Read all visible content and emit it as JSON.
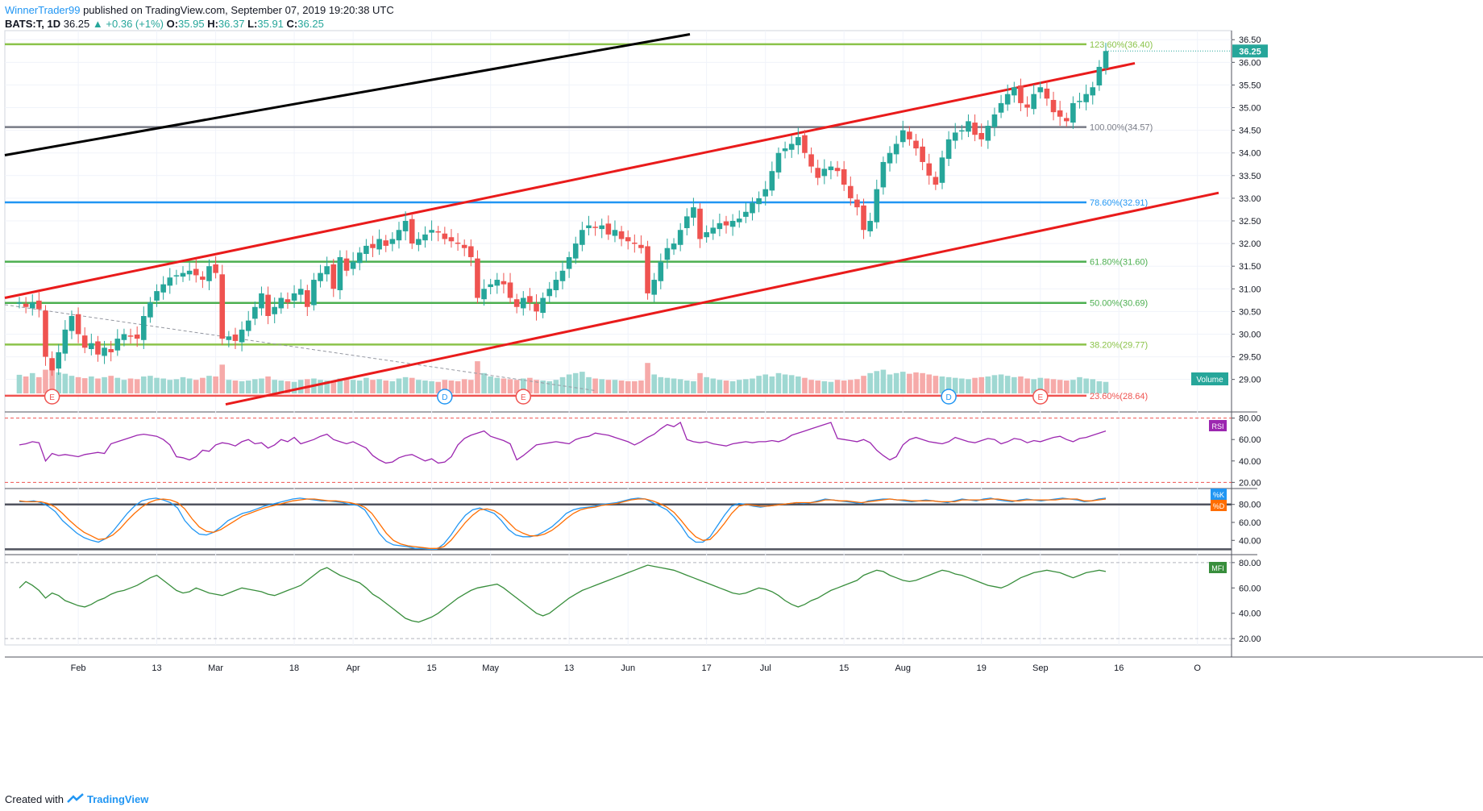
{
  "header": {
    "author": "WinnerTrader99",
    "published": "published on TradingView.com, September 07, 2019 19:20:38 UTC",
    "symbol": "BATS:T, 1D",
    "last": "36.25",
    "change": "+0.36 (+1%)",
    "o_label": "O:",
    "o": "35.95",
    "h_label": "H:",
    "h": "36.37",
    "l_label": "L:",
    "l": "35.91",
    "c_label": "C:",
    "c": "36.25"
  },
  "footer": {
    "created_with": "Created with",
    "brand": "TradingView"
  },
  "colors": {
    "up": "#26a69a",
    "down": "#ef5350",
    "channel": "#e91b1b",
    "trend": "#000000",
    "rsi": "#9c27b0",
    "k": "#2196f3",
    "d": "#ff6d00",
    "mfi": "#388e3c"
  },
  "chart_data": [
    {
      "type": "candlestick",
      "title": "",
      "ylim": [
        28.3,
        36.7
      ],
      "price_ticks": [
        "36.50",
        "36.00",
        "35.50",
        "35.00",
        "34.50",
        "34.00",
        "33.50",
        "33.00",
        "32.50",
        "32.00",
        "31.50",
        "31.00",
        "30.50",
        "30.00",
        "29.50",
        "29.00"
      ],
      "last_price_label": "36.25",
      "volume_label": "Volume",
      "x_ticks": [
        "Feb",
        "13",
        "Mar",
        "18",
        "Apr",
        "15",
        "May",
        "13",
        "Jun",
        "17",
        "Jul",
        "15",
        "Aug",
        "19",
        "Sep",
        "16",
        "O"
      ],
      "fib_levels": [
        {
          "label": "123.60%(36.40)",
          "value": 36.4,
          "color": "#8bc34a"
        },
        {
          "label": "100.00%(34.57)",
          "value": 34.57,
          "color": "#787b86"
        },
        {
          "label": "78.60%(32.91)",
          "value": 32.91,
          "color": "#2196f3"
        },
        {
          "label": "61.80%(31.60)",
          "value": 31.6,
          "color": "#4caf50"
        },
        {
          "label": "50.00%(30.69)",
          "value": 30.69,
          "color": "#4caf50"
        },
        {
          "label": "38.20%(29.77)",
          "value": 29.77,
          "color": "#8bc34a"
        },
        {
          "label": "23.60%(28.64)",
          "value": 28.64,
          "color": "#ef5350"
        }
      ],
      "events": [
        {
          "label": "E",
          "kind": "earnings",
          "index": 5
        },
        {
          "label": "D",
          "kind": "dividend",
          "index": 65
        },
        {
          "label": "E",
          "kind": "earnings",
          "index": 77
        },
        {
          "label": "D",
          "kind": "dividend",
          "index": 142
        },
        {
          "label": "E",
          "kind": "earnings",
          "index": 156
        }
      ],
      "closes": [
        30.7,
        30.6,
        30.7,
        30.55,
        29.5,
        29.2,
        29.6,
        30.1,
        30.4,
        30.0,
        29.7,
        29.8,
        29.55,
        29.7,
        29.6,
        29.9,
        30.0,
        29.95,
        29.9,
        30.4,
        30.7,
        30.95,
        31.1,
        31.25,
        31.3,
        31.35,
        31.4,
        31.3,
        31.2,
        31.5,
        31.35,
        29.9,
        29.95,
        29.85,
        30.1,
        30.3,
        30.6,
        30.9,
        30.4,
        30.6,
        30.8,
        30.7,
        30.9,
        31.0,
        30.6,
        31.2,
        31.35,
        31.5,
        31.0,
        31.7,
        31.4,
        31.6,
        31.8,
        31.95,
        31.9,
        32.1,
        31.95,
        32.1,
        32.3,
        32.5,
        32.0,
        32.1,
        32.2,
        32.3,
        32.25,
        32.1,
        32.05,
        32.0,
        31.9,
        31.7,
        30.8,
        31.0,
        31.1,
        31.2,
        31.1,
        30.8,
        30.6,
        30.8,
        30.7,
        30.5,
        30.8,
        31.0,
        31.2,
        31.4,
        31.7,
        32.0,
        32.3,
        32.4,
        32.35,
        32.4,
        32.2,
        32.3,
        32.1,
        32.05,
        32.0,
        31.9,
        30.9,
        31.2,
        31.6,
        31.9,
        32.0,
        32.3,
        32.6,
        32.8,
        32.1,
        32.25,
        32.35,
        32.45,
        32.4,
        32.5,
        32.55,
        32.7,
        32.9,
        33.0,
        33.2,
        33.6,
        34.0,
        34.1,
        34.2,
        34.35,
        34.0,
        33.7,
        33.45,
        33.65,
        33.7,
        33.6,
        33.3,
        33.0,
        32.8,
        32.3,
        32.5,
        33.2,
        33.8,
        34.0,
        34.2,
        34.5,
        34.3,
        34.1,
        33.8,
        33.5,
        33.3,
        33.9,
        34.3,
        34.45,
        34.5,
        34.7,
        34.4,
        34.3,
        34.6,
        34.85,
        35.1,
        35.3,
        35.45,
        35.1,
        35.0,
        35.3,
        35.45,
        35.2,
        34.9,
        34.8,
        34.7,
        35.1,
        35.15,
        35.3,
        35.45,
        35.9,
        36.25
      ],
      "rsi": {
        "label": "RSI",
        "ylim": [
          15,
          85
        ],
        "ticks": [
          "80.00",
          "60.00",
          "40.00",
          "20.00"
        ],
        "bands": [
          80,
          20
        ],
        "values": [
          55,
          56,
          58,
          57,
          40,
          47,
          45,
          46,
          45,
          44,
          46,
          47,
          48,
          47,
          56,
          58,
          60,
          62,
          64,
          65,
          64,
          63,
          60,
          55,
          44,
          43,
          41,
          44,
          50,
          49,
          55,
          57,
          56,
          54,
          58,
          60,
          56,
          57,
          52,
          55,
          60,
          58,
          62,
          56,
          58,
          60,
          63,
          65,
          60,
          58,
          56,
          58,
          55,
          52,
          45,
          41,
          38,
          39,
          43,
          45,
          46,
          43,
          40,
          42,
          38,
          39,
          44,
          55,
          61,
          64,
          66,
          68,
          63,
          61,
          59,
          56,
          41,
          45,
          50,
          55,
          56,
          57,
          58,
          57,
          56,
          60,
          62,
          63,
          66,
          65,
          64,
          62,
          60,
          58,
          55,
          58,
          62,
          65,
          70,
          74,
          72,
          76,
          60,
          58,
          57,
          58,
          56,
          55,
          54,
          56,
          57,
          58,
          57,
          58,
          58,
          59,
          58,
          60,
          64,
          66,
          68,
          70,
          72,
          74,
          76,
          61,
          60,
          59,
          58,
          60,
          57,
          50,
          45,
          41,
          44,
          55,
          60,
          62,
          60,
          58,
          57,
          56,
          58,
          62,
          60,
          58,
          57,
          59,
          61,
          60,
          56,
          58,
          61,
          60,
          57,
          59,
          58,
          60,
          62,
          63,
          60,
          58,
          61,
          62,
          64,
          66,
          68
        ]
      },
      "stoch": {
        "label_k": "%K",
        "label_d": "%D",
        "ylim": [
          25,
          95
        ],
        "ticks": [
          "80.00",
          "60.00",
          "40.00"
        ],
        "bands": [
          80,
          30
        ],
        "k": [
          83,
          83,
          84,
          82,
          78,
          72,
          62,
          55,
          48,
          43,
          40,
          38,
          42,
          50,
          60,
          70,
          78,
          84,
          86,
          87,
          85,
          82,
          76,
          62,
          53,
          47,
          46,
          49,
          55,
          62,
          66,
          70,
          72,
          75,
          78,
          80,
          82,
          84,
          86,
          87,
          86,
          85,
          84,
          84,
          83,
          82,
          80,
          79,
          74,
          62,
          48,
          39,
          35,
          34,
          33,
          31,
          31,
          30,
          30,
          36,
          46,
          58,
          68,
          74,
          76,
          73,
          70,
          62,
          52,
          46,
          44,
          44,
          46,
          50,
          55,
          62,
          70,
          74,
          76,
          77,
          78,
          80,
          81,
          82,
          84,
          86,
          87,
          86,
          82,
          78,
          74,
          66,
          56,
          44,
          38,
          38,
          44,
          56,
          68,
          78,
          81,
          80,
          78,
          77,
          78,
          79,
          80,
          81,
          82,
          81,
          82,
          84,
          86,
          85,
          84,
          83,
          82,
          81,
          84,
          85,
          86,
          86,
          85,
          84,
          83,
          84,
          85,
          84,
          83,
          82,
          84,
          86,
          85,
          84,
          86,
          87,
          85,
          84,
          83,
          85,
          86,
          85,
          84,
          85,
          86,
          87,
          86,
          85,
          83,
          84,
          86,
          87
        ],
        "d": [
          84,
          83,
          83,
          83,
          81,
          77,
          70,
          62,
          55,
          49,
          45,
          41,
          42,
          46,
          53,
          62,
          70,
          77,
          82,
          85,
          86,
          85,
          82,
          75,
          64,
          55,
          50,
          49,
          52,
          57,
          62,
          67,
          70,
          73,
          76,
          78,
          80,
          82,
          84,
          85,
          86,
          86,
          85,
          84,
          84,
          83,
          82,
          80,
          77,
          70,
          59,
          48,
          40,
          36,
          34,
          33,
          32,
          31,
          31,
          33,
          40,
          50,
          60,
          68,
          74,
          75,
          73,
          68,
          60,
          52,
          48,
          45,
          45,
          47,
          51,
          57,
          64,
          70,
          74,
          76,
          77,
          79,
          80,
          81,
          83,
          85,
          86,
          86,
          84,
          81,
          77,
          71,
          62,
          52,
          44,
          40,
          41,
          49,
          59,
          70,
          78,
          80,
          79,
          78,
          78,
          79,
          80,
          81,
          82,
          82,
          82,
          83,
          85,
          85,
          84,
          84,
          83,
          82,
          83,
          84,
          85,
          86,
          85,
          85,
          84,
          84,
          84,
          84,
          83,
          83,
          83,
          85,
          85,
          85,
          85,
          86,
          86,
          85,
          84,
          84,
          85,
          85,
          85,
          85,
          85,
          86,
          86,
          86,
          84,
          84,
          85,
          86
        ]
      },
      "mfi": {
        "label": "MFI",
        "ylim": [
          15,
          85
        ],
        "ticks": [
          "80.00",
          "60.00",
          "40.00",
          "20.00"
        ],
        "bands": [
          80,
          20
        ],
        "values": [
          60,
          65,
          62,
          58,
          52,
          56,
          54,
          50,
          48,
          46,
          45,
          47,
          50,
          52,
          55,
          57,
          58,
          60,
          62,
          65,
          68,
          70,
          66,
          62,
          58,
          56,
          57,
          60,
          58,
          56,
          55,
          54,
          56,
          58,
          60,
          59,
          58,
          57,
          55,
          54,
          56,
          58,
          60,
          62,
          66,
          70,
          74,
          76,
          73,
          70,
          68,
          66,
          64,
          60,
          55,
          52,
          48,
          44,
          40,
          36,
          34,
          33,
          35,
          37,
          40,
          44,
          48,
          52,
          55,
          58,
          60,
          61,
          62,
          63,
          60,
          56,
          52,
          48,
          44,
          40,
          38,
          40,
          44,
          48,
          52,
          55,
          58,
          60,
          62,
          64,
          66,
          68,
          70,
          72,
          74,
          76,
          78,
          77,
          76,
          75,
          74,
          72,
          70,
          68,
          66,
          64,
          62,
          60,
          58,
          56,
          55,
          56,
          58,
          60,
          59,
          57,
          54,
          50,
          47,
          45,
          47,
          50,
          52,
          55,
          58,
          60,
          62,
          64,
          66,
          70,
          72,
          74,
          73,
          70,
          68,
          66,
          65,
          66,
          68,
          70,
          72,
          74,
          73,
          71,
          70,
          68,
          66,
          64,
          62,
          61,
          60,
          62,
          65,
          68,
          70,
          72,
          73,
          74,
          73,
          72,
          70,
          68,
          70,
          72,
          73,
          74,
          73
        ]
      }
    }
  ]
}
